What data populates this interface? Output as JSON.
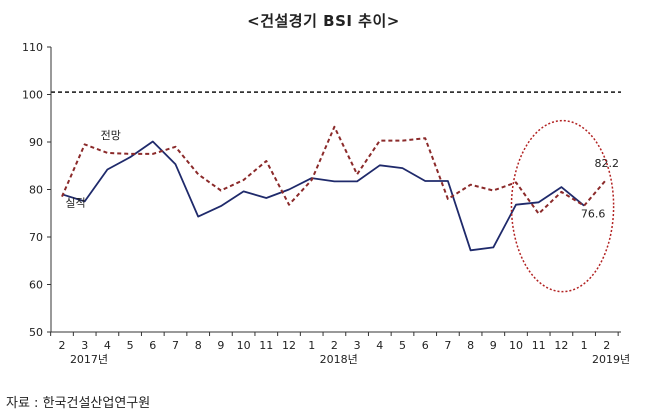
{
  "chart_data": {
    "type": "line",
    "title": "<건설경기 BSI 추이>",
    "ylim": [
      50,
      110
    ],
    "yticks": [
      50,
      60,
      70,
      80,
      90,
      100,
      110
    ],
    "categories": [
      "2",
      "3",
      "4",
      "5",
      "6",
      "7",
      "8",
      "9",
      "10",
      "11",
      "12",
      "1",
      "2",
      "3",
      "4",
      "5",
      "6",
      "7",
      "8",
      "9",
      "10",
      "11",
      "12",
      "1",
      "2"
    ],
    "year_labels": [
      {
        "index": 0,
        "label": "2017년"
      },
      {
        "index": 11,
        "label": "2018년"
      },
      {
        "index": 23,
        "label": "2019년"
      }
    ],
    "reference_line": 100.5,
    "series": [
      {
        "name": "실적",
        "style": "solid",
        "color": "#1f2a6b",
        "values": [
          79.0,
          77.5,
          84.2,
          86.8,
          90.1,
          85.3,
          74.3,
          76.5,
          79.6,
          78.2,
          80.0,
          82.4,
          81.7,
          81.7,
          85.1,
          84.5,
          81.8,
          81.8,
          67.2,
          67.8,
          76.8,
          77.3,
          80.5,
          76.6,
          null
        ]
      },
      {
        "name": "전망",
        "style": "dashed",
        "color": "#8b2a2a",
        "values": [
          78.5,
          89.5,
          87.7,
          87.5,
          87.5,
          89.0,
          83.2,
          79.8,
          82.0,
          86.0,
          76.8,
          82.0,
          93.2,
          83.2,
          90.3,
          90.3,
          90.8,
          78.0,
          81.0,
          79.8,
          81.5,
          74.9,
          79.5,
          76.6,
          82.2
        ]
      }
    ],
    "annotations": [
      {
        "text": "82.2",
        "index": 24,
        "value": 82.2
      },
      {
        "text": "76.6",
        "index": 23,
        "value": 76.6
      }
    ],
    "highlight_ellipse": {
      "index_start": 19.8,
      "index_end": 24.3,
      "value_low": 58.5,
      "value_high": 94.5
    }
  },
  "source_note": "자료 : 한국건설산업연구원"
}
